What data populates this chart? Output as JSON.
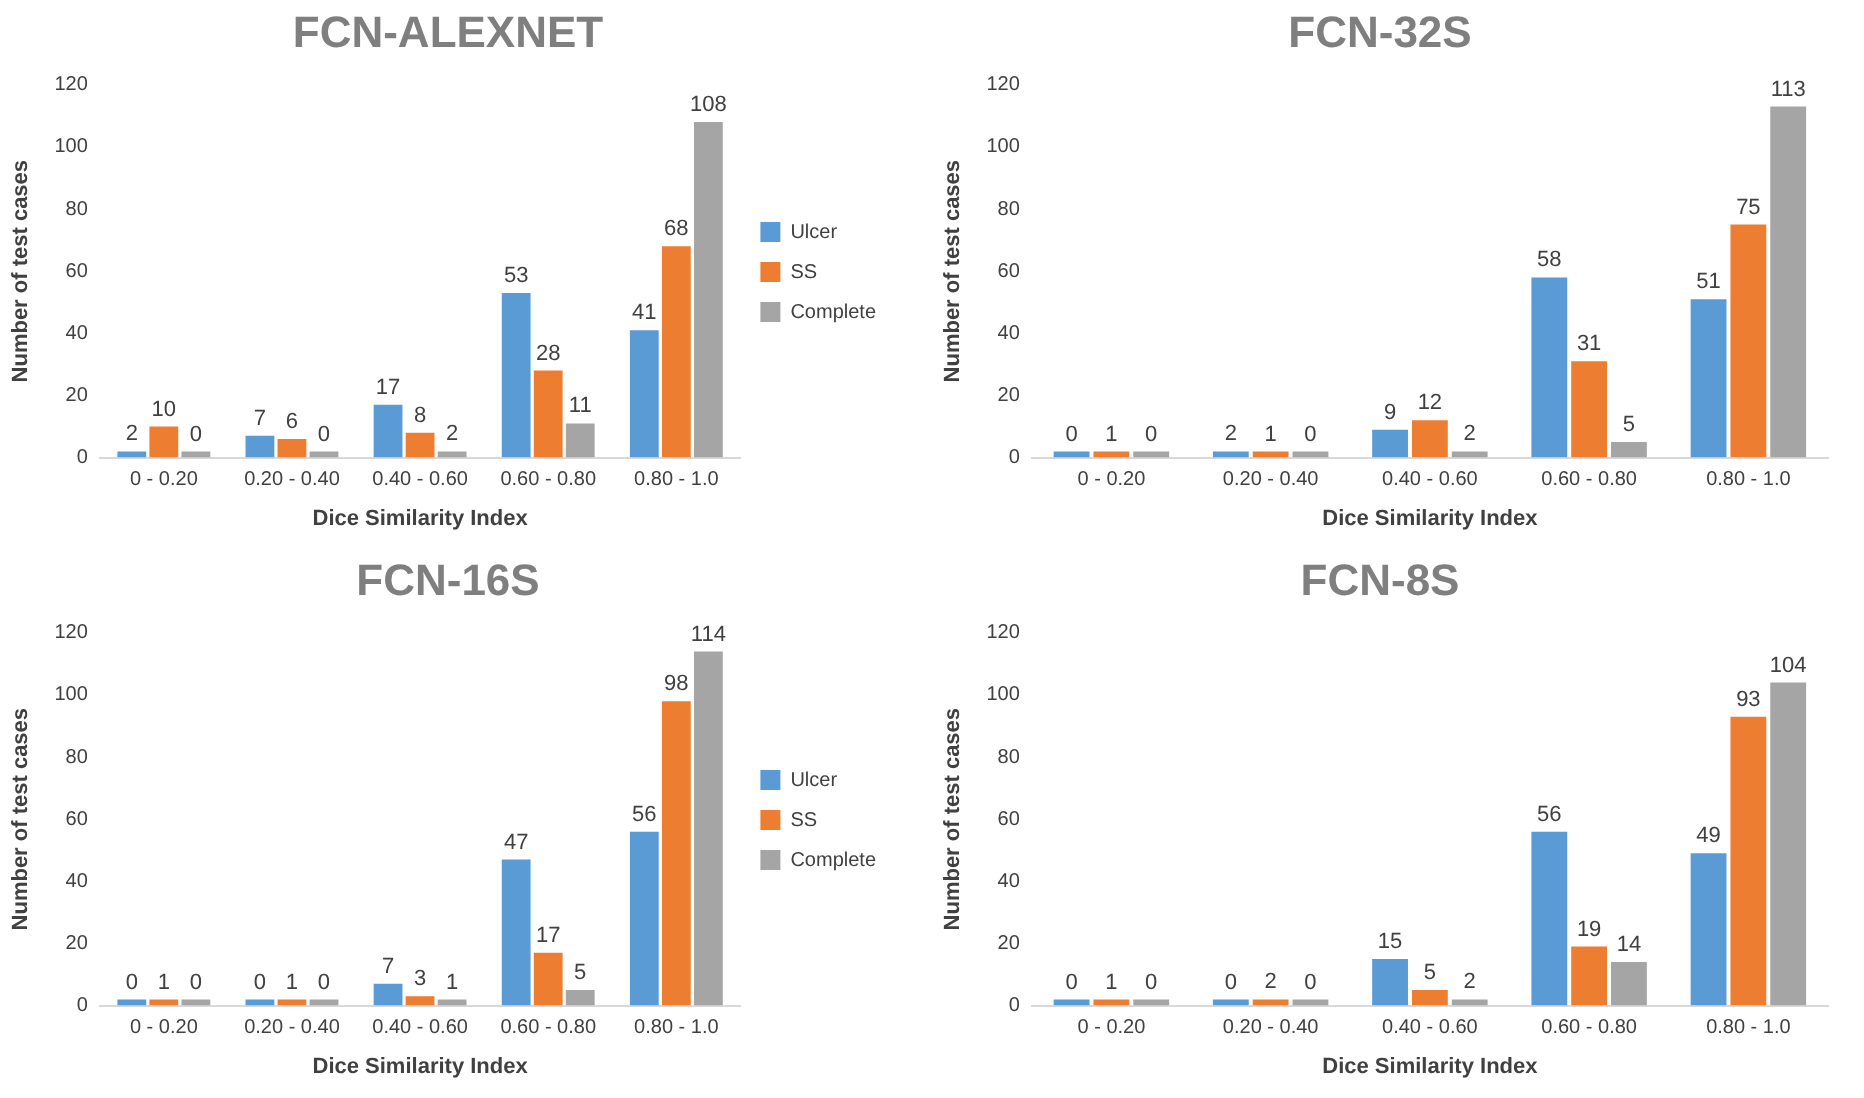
{
  "chart_data": [
    {
      "type": "bar",
      "title": "FCN-ALEXNET",
      "xlabel": "Dice Similarity Index",
      "ylabel": "Number of test cases",
      "categories": [
        "0 - 0.20",
        "0.20 - 0.40",
        "0.40 - 0.60",
        "0.60 - 0.80",
        "0.80 - 1.0"
      ],
      "series": [
        {
          "name": "Ulcer",
          "color": "#5b9bd5",
          "values": [
            2,
            7,
            17,
            53,
            41
          ]
        },
        {
          "name": "SS",
          "color": "#ed7d31",
          "values": [
            10,
            6,
            8,
            28,
            68
          ]
        },
        {
          "name": "Complete",
          "color": "#a5a5a5",
          "values": [
            0,
            0,
            2,
            11,
            108
          ]
        }
      ],
      "ylim": [
        0,
        120
      ],
      "yticks": [
        0,
        20,
        40,
        60,
        80,
        100,
        120
      ],
      "data_labels": true,
      "legend": "right"
    },
    {
      "type": "bar",
      "title": "FCN-32S",
      "xlabel": "Dice Similarity Index",
      "ylabel": "Number of test cases",
      "categories": [
        "0 - 0.20",
        "0.20 - 0.40",
        "0.40 - 0.60",
        "0.60 - 0.80",
        "0.80 - 1.0"
      ],
      "series": [
        {
          "color": "#5b9bd5",
          "values": [
            0,
            2,
            9,
            58,
            51
          ]
        },
        {
          "color": "#ed7d31",
          "values": [
            1,
            1,
            12,
            31,
            75
          ]
        },
        {
          "color": "#a5a5a5",
          "values": [
            0,
            0,
            2,
            5,
            113
          ]
        }
      ],
      "ylim": [
        0,
        120
      ],
      "yticks": [
        0,
        20,
        40,
        60,
        80,
        100,
        120
      ],
      "data_labels": true
    },
    {
      "type": "bar",
      "title": "FCN-16S",
      "xlabel": "Dice Similarity Index",
      "ylabel": "Number of test cases",
      "categories": [
        "0 - 0.20",
        "0.20 - 0.40",
        "0.40 - 0.60",
        "0.60 - 0.80",
        "0.80 - 1.0"
      ],
      "series": [
        {
          "name": "Ulcer",
          "color": "#5b9bd5",
          "values": [
            0,
            0,
            7,
            47,
            56
          ]
        },
        {
          "name": "SS",
          "color": "#ed7d31",
          "values": [
            1,
            1,
            3,
            17,
            98
          ]
        },
        {
          "name": "Complete",
          "color": "#a5a5a5",
          "values": [
            0,
            0,
            1,
            5,
            114
          ]
        }
      ],
      "ylim": [
        0,
        120
      ],
      "yticks": [
        0,
        20,
        40,
        60,
        80,
        100,
        120
      ],
      "data_labels": true,
      "legend": "right"
    },
    {
      "type": "bar",
      "title": "FCN-8S",
      "xlabel": "Dice Similarity Index",
      "ylabel": "Number of test cases",
      "categories": [
        "0 - 0.20",
        "0.20 - 0.40",
        "0.40 - 0.60",
        "0.60 - 0.80",
        "0.80 - 1.0"
      ],
      "series": [
        {
          "color": "#5b9bd5",
          "values": [
            0,
            0,
            15,
            56,
            49
          ]
        },
        {
          "color": "#ed7d31",
          "values": [
            1,
            2,
            5,
            19,
            93
          ]
        },
        {
          "color": "#a5a5a5",
          "values": [
            0,
            0,
            2,
            14,
            104
          ]
        }
      ],
      "ylim": [
        0,
        120
      ],
      "yticks": [
        0,
        20,
        40,
        60,
        80,
        100,
        120
      ],
      "data_labels": true
    }
  ]
}
